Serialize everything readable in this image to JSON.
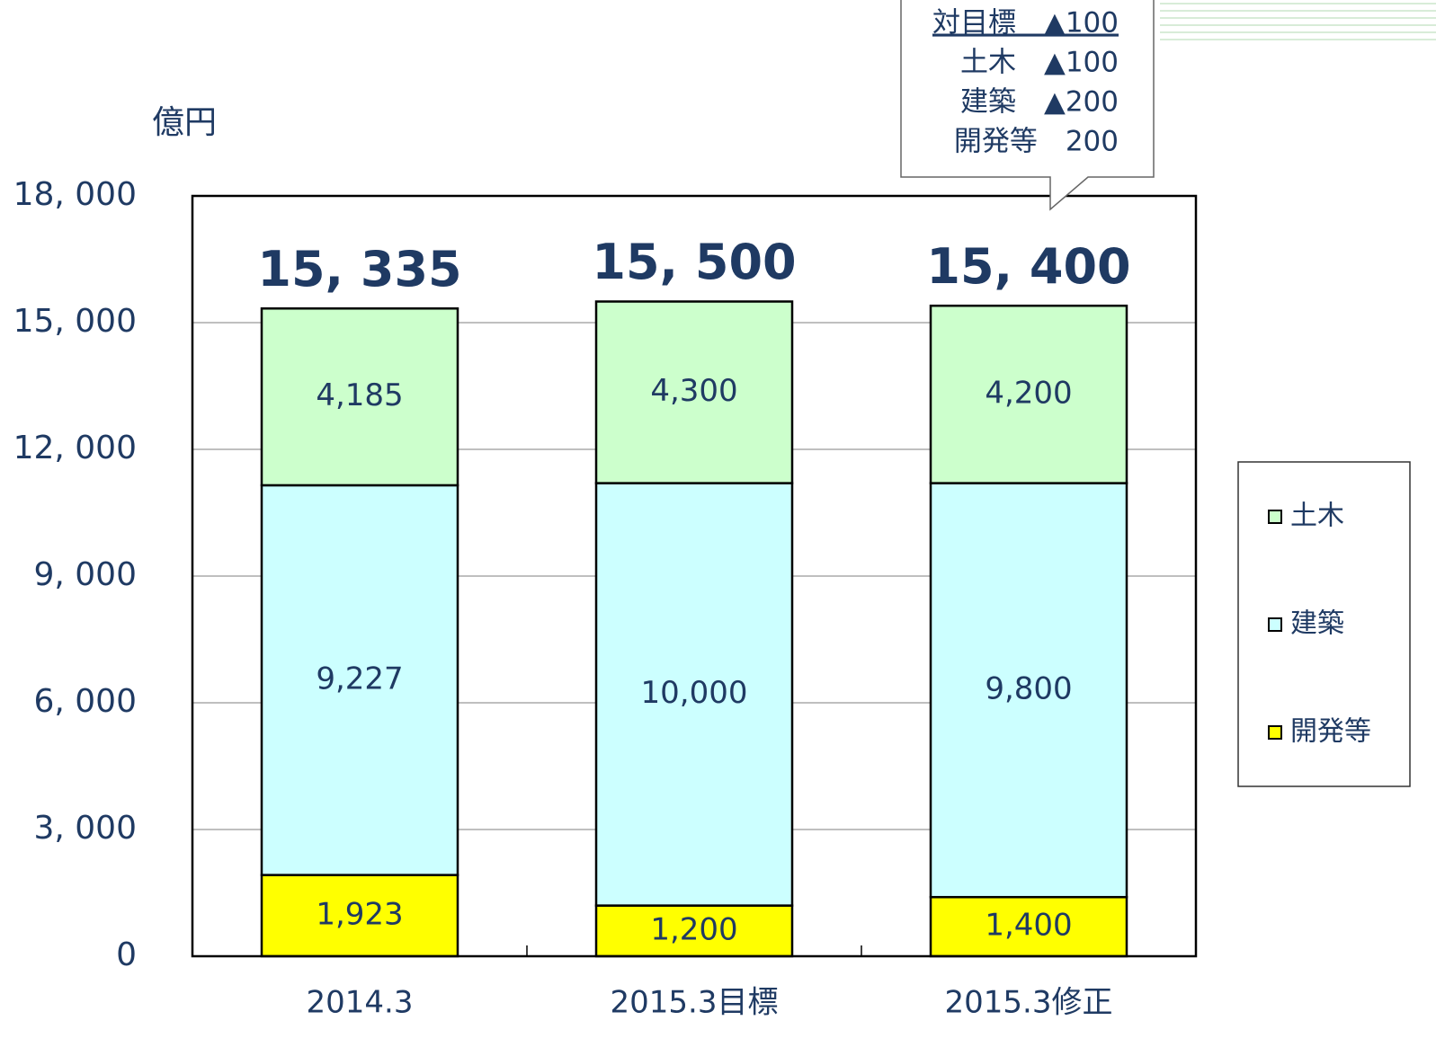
{
  "chart_data": {
    "type": "stacked_bar",
    "y_axis_label": "億円",
    "categories": [
      "2014.3",
      "2015.3目標",
      "2015.3修正"
    ],
    "series": [
      {
        "name": "開発等",
        "color": "#ffff00",
        "values": [
          1923,
          1200,
          1400
        ],
        "value_labels": [
          "1,923",
          "1,200",
          "1,400"
        ]
      },
      {
        "name": "建築",
        "color": "#ccffff",
        "values": [
          9227,
          10000,
          9800
        ],
        "value_labels": [
          "9,227",
          "10,000",
          "9,800"
        ]
      },
      {
        "name": "土木",
        "color": "#ccffcc",
        "values": [
          4185,
          4300,
          4200
        ],
        "value_labels": [
          "4,185",
          "4,300",
          "4,200"
        ]
      }
    ],
    "totals": {
      "values": [
        15335,
        15500,
        15400
      ],
      "value_labels": [
        "15, 335",
        "15, 500",
        "15, 400"
      ]
    },
    "ylim": [
      0,
      18000
    ],
    "yticks": [
      0,
      {
        "value": 3000,
        "label": "3, 000"
      },
      {
        "value": 6000,
        "label": "6, 000"
      },
      {
        "value": 9000,
        "label": "9, 000"
      },
      {
        "value": 12000,
        "label": "12, 000"
      },
      {
        "value": 15000,
        "label": "15, 000"
      },
      {
        "value": 18000,
        "label": "18, 000"
      }
    ],
    "grid": true,
    "legend": "right",
    "annotation": {
      "lines": [
        "対目標　▲100",
        "土木　▲100",
        "建築　▲200",
        "開発等　200"
      ]
    }
  }
}
